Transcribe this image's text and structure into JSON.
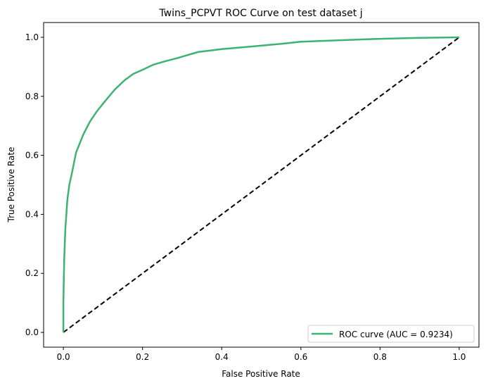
{
  "chart_data": {
    "type": "line",
    "title": "Twins_PCPVT ROC Curve on test dataset j",
    "xlabel": "False Positive Rate",
    "ylabel": "True Positive Rate",
    "xlim": [
      -0.05,
      1.05
    ],
    "ylim": [
      -0.05,
      1.05
    ],
    "xticks": [
      "0.0",
      "0.2",
      "0.4",
      "0.6",
      "0.8",
      "1.0"
    ],
    "yticks": [
      "0.0",
      "0.2",
      "0.4",
      "0.6",
      "0.8",
      "1.0"
    ],
    "grid": false,
    "legend_position": "lower-right",
    "series": [
      {
        "name": "ROC curve (AUC = 0.9234)",
        "color": "#3cb371",
        "style": "solid",
        "x": [
          0,
          0,
          0.002,
          0.005,
          0.01,
          0.015,
          0.021,
          0.032,
          0.05,
          0.067,
          0.085,
          0.103,
          0.13,
          0.155,
          0.177,
          0.2,
          0.227,
          0.255,
          0.284,
          0.34,
          0.4,
          0.479,
          0.55,
          0.6,
          0.7,
          0.8,
          0.9,
          1.0
        ],
        "y": [
          0,
          0.1,
          0.25,
          0.35,
          0.45,
          0.5,
          0.537,
          0.609,
          0.67,
          0.714,
          0.75,
          0.78,
          0.823,
          0.855,
          0.876,
          0.89,
          0.907,
          0.918,
          0.928,
          0.95,
          0.96,
          0.969,
          0.978,
          0.985,
          0.99,
          0.995,
          0.998,
          1.0
        ]
      },
      {
        "color": "#000000",
        "style": "dashed",
        "x": [
          0,
          1
        ],
        "y": [
          0,
          1
        ]
      }
    ]
  }
}
